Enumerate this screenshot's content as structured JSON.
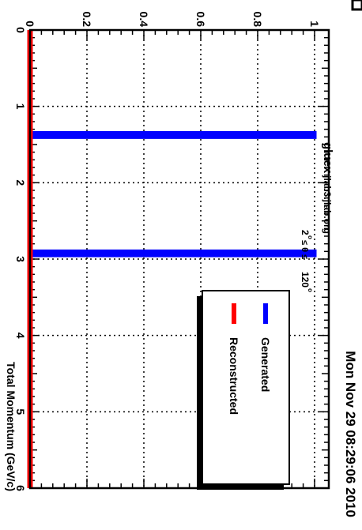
{
  "header": {
    "timestamp": "Mon Nov 29 08:29:06 2010",
    "experiment": "gluex",
    "host": "jlab3.jlab.org"
  },
  "colors": {
    "generated": "#0000ff",
    "reconstructed": "#ff0000",
    "frame": "#000000"
  },
  "chart_data": {
    "type": "bar",
    "subtitle": {
      "lo": "2",
      "hi": "120",
      "deg": "o",
      "rel": "≤ θ ≤"
    },
    "xlabel": "Total Momentum (GeV/c)",
    "ylabel": "",
    "xlim": [
      0,
      6
    ],
    "ylim": [
      0,
      1.05
    ],
    "grid": true,
    "legend_position": "top-right",
    "x_ticks": [
      "0",
      "1",
      "2",
      "3",
      "4",
      "5",
      "6"
    ],
    "y_ticks": [
      "0",
      "0.2",
      "0.4",
      "0.6",
      "0.8",
      "1"
    ],
    "series": [
      {
        "name": "Generated",
        "color": "#0000ff",
        "bins": [
          {
            "x_low": 1.35,
            "x_high": 1.4,
            "value": 1.0
          },
          {
            "x_low": 2.9,
            "x_high": 2.95,
            "value": 1.0
          }
        ]
      },
      {
        "name": "Reconstructed",
        "color": "#ff0000",
        "bins": [
          {
            "x_low": 0.0,
            "x_high": 6.0,
            "value": 0.0
          }
        ]
      }
    ]
  }
}
